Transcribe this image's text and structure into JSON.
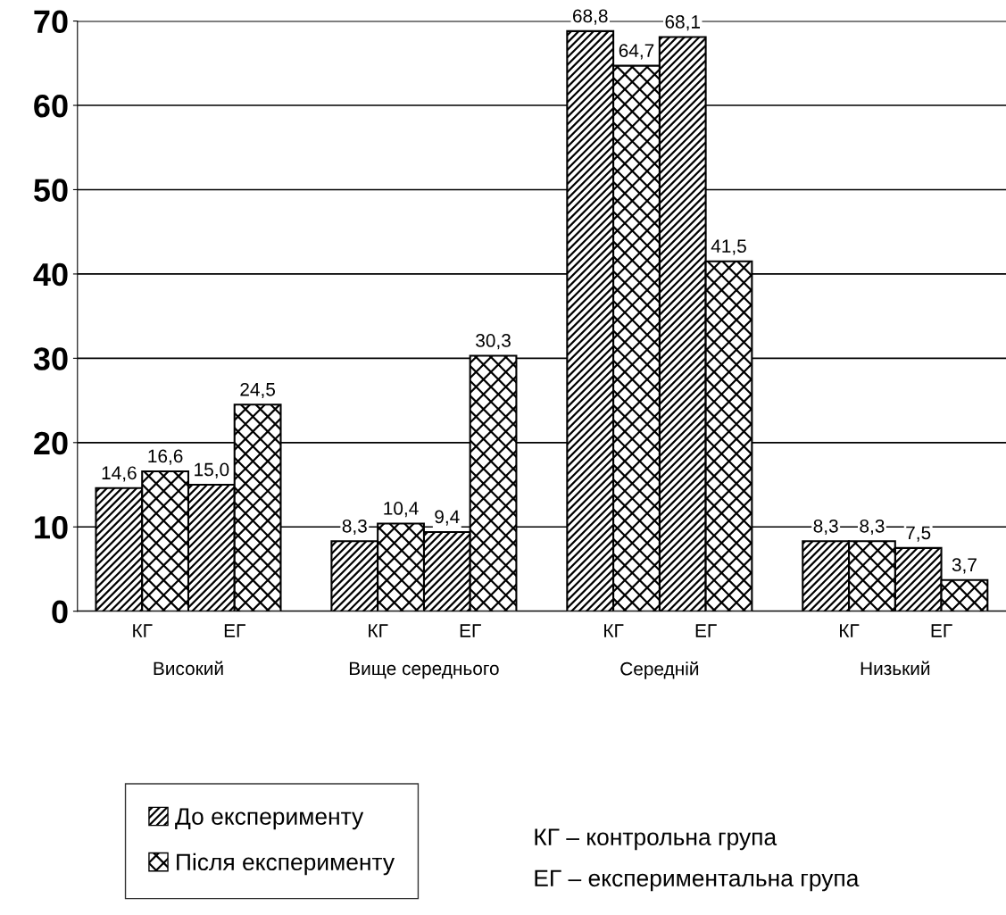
{
  "chart_data": {
    "type": "bar",
    "categories": [
      "КГ",
      "ЕГ",
      "КГ",
      "ЕГ",
      "КГ",
      "ЕГ",
      "КГ",
      "ЕГ"
    ],
    "series": [
      {
        "name": "До експерименту",
        "color": "#000000",
        "values": [
          14.6,
          15.0,
          8.3,
          9.4,
          68.8,
          68.1,
          8.3,
          7.5
        ],
        "value_labels": [
          "14,6",
          "15,0",
          "8,3",
          "9,4",
          "68,8",
          "68,1",
          "8,3",
          "7,5"
        ]
      },
      {
        "name": "Після експерименту",
        "color": "#000000",
        "values": [
          16.6,
          24.5,
          10.4,
          30.3,
          64.7,
          41.5,
          8.3,
          3.7
        ],
        "value_labels": [
          "16,6",
          "24,5",
          "10,4",
          "30,3",
          "64,7",
          "41,5",
          "8,3",
          "3,7"
        ]
      }
    ],
    "ylim": [
      0,
      70
    ],
    "yticks": [
      0,
      10,
      20,
      30,
      40,
      50,
      60,
      70
    ],
    "grid": "y",
    "legend": "bottom left",
    "annotations": [
      "Високий",
      "Вище середнього",
      "Середній",
      "Низький",
      "КГ – контрольна група",
      "ЕГ – експериментальна група"
    ]
  }
}
